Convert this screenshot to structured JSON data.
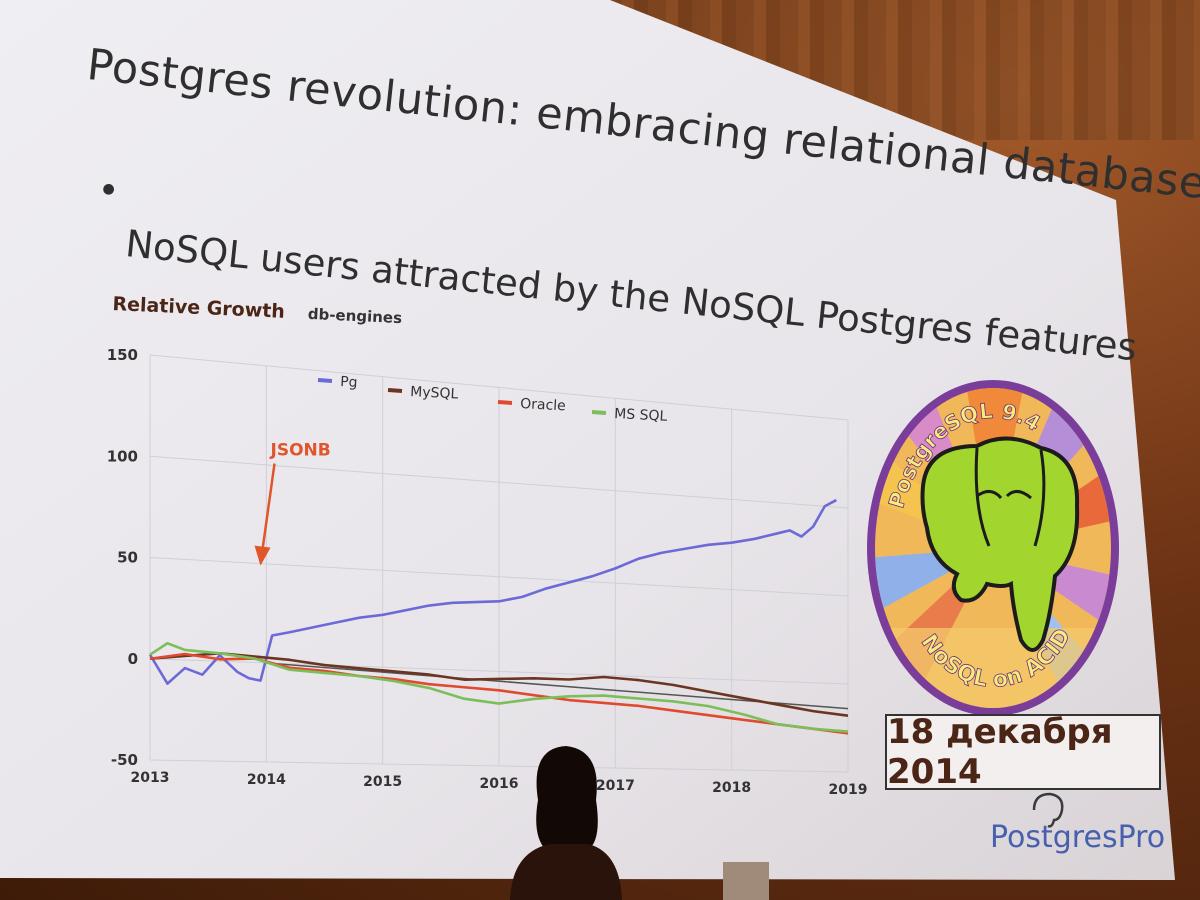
{
  "slide": {
    "title": "Postgres revolution: embracing relational databases",
    "bullet": "•",
    "subtitle": "NoSQL users attracted by the NoSQL Postgres features"
  },
  "chart_heading": {
    "title": "Relative Growth",
    "source": "db-engines"
  },
  "chart_data": {
    "type": "line",
    "title": "Relative Growth",
    "subtitle": "db-engines",
    "xlabel": "",
    "ylabel": "",
    "ylim": [
      -50,
      150
    ],
    "xlim": [
      2013,
      2019
    ],
    "y_ticks": [
      "150",
      "100",
      "50",
      "0",
      "-50"
    ],
    "x_ticks": [
      "2013",
      "2014",
      "2015",
      "2016",
      "2017",
      "2018",
      "2019"
    ],
    "x_tick_values": [
      2013,
      2014,
      2015,
      2016,
      2017,
      2018,
      2019
    ],
    "grid": true,
    "legend_position": "top",
    "annotation": {
      "text": "JSONB",
      "x": 2013.95,
      "y": 50
    },
    "series": [
      {
        "name": "Pg",
        "color": "#6c6ad6",
        "x": [
          2013.0,
          2013.15,
          2013.3,
          2013.45,
          2013.6,
          2013.75,
          2013.85,
          2013.95,
          2014.05,
          2014.2,
          2014.4,
          2014.6,
          2014.8,
          2015.0,
          2015.2,
          2015.4,
          2015.6,
          2015.8,
          2016.0,
          2016.2,
          2016.4,
          2016.6,
          2016.8,
          2017.0,
          2017.2,
          2017.4,
          2017.6,
          2017.8,
          2018.0,
          2018.2,
          2018.4,
          2018.5,
          2018.6,
          2018.7,
          2018.8,
          2018.9
        ],
        "y": [
          2,
          -12,
          -4,
          -7,
          3,
          -5,
          -8,
          -9,
          14,
          16,
          19,
          22,
          25,
          27,
          30,
          33,
          35,
          36,
          37,
          40,
          45,
          49,
          53,
          58,
          64,
          68,
          71,
          74,
          76,
          79,
          83,
          85,
          82,
          88,
          100,
          104
        ]
      },
      {
        "name": "MySQL",
        "color": "#6b3522",
        "x": [
          2013.0,
          2013.3,
          2013.6,
          2013.9,
          2014.2,
          2014.5,
          2014.8,
          2015.1,
          2015.4,
          2015.7,
          2016.0,
          2016.3,
          2016.6,
          2016.9,
          2017.2,
          2017.5,
          2017.8,
          2018.1,
          2018.4,
          2018.7,
          2019.0
        ],
        "y": [
          0,
          2,
          4,
          3,
          2,
          0,
          -1,
          -2,
          -3,
          -5,
          -4,
          -3,
          -3,
          -1,
          -2,
          -4,
          -7,
          -10,
          -13,
          -16,
          -18
        ]
      },
      {
        "name": "Oracle",
        "color": "#e04a2e",
        "x": [
          2013.0,
          2013.3,
          2013.6,
          2013.9,
          2014.2,
          2014.5,
          2014.8,
          2015.1,
          2015.4,
          2015.7,
          2016.0,
          2016.3,
          2016.6,
          2016.9,
          2017.2,
          2017.5,
          2017.8,
          2018.1,
          2018.4,
          2018.7,
          2019.0
        ],
        "y": [
          0,
          3,
          1,
          2,
          -2,
          -3,
          -5,
          -6,
          -8,
          -9,
          -10,
          -12,
          -14,
          -15,
          -16,
          -18,
          -20,
          -22,
          -24,
          -26,
          -28
        ]
      },
      {
        "name": "MS SQL",
        "color": "#7cbf5a",
        "x": [
          2013.0,
          2013.15,
          2013.3,
          2013.6,
          2013.9,
          2014.2,
          2014.5,
          2014.8,
          2015.1,
          2015.4,
          2015.7,
          2016.0,
          2016.3,
          2016.6,
          2016.9,
          2017.2,
          2017.5,
          2017.8,
          2018.1,
          2018.4,
          2018.7,
          2019.0
        ],
        "y": [
          2,
          8,
          5,
          4,
          2,
          -3,
          -4,
          -5,
          -7,
          -10,
          -15,
          -17,
          -14,
          -12,
          -11,
          -12,
          -13,
          -15,
          -19,
          -24,
          -26,
          -27
        ]
      }
    ],
    "reference_line": {
      "x": [
        2014.0,
        2019.0
      ],
      "y": [
        0,
        -14
      ],
      "color": "#555555"
    }
  },
  "badge": {
    "ring_text_top": "PostgreSQL 9.4",
    "ring_text_bottom": "NoSQL on ACID"
  },
  "date_box": {
    "text": "18 декабря 2014"
  },
  "brand": {
    "text": "PostgresPro"
  },
  "colors": {
    "slide_background": "#e9e6ea",
    "text": "#2f2f2f",
    "heading_brown": "#4b2516",
    "jsonb_orange": "#e0562a",
    "brand_blue": "#4760ad"
  }
}
